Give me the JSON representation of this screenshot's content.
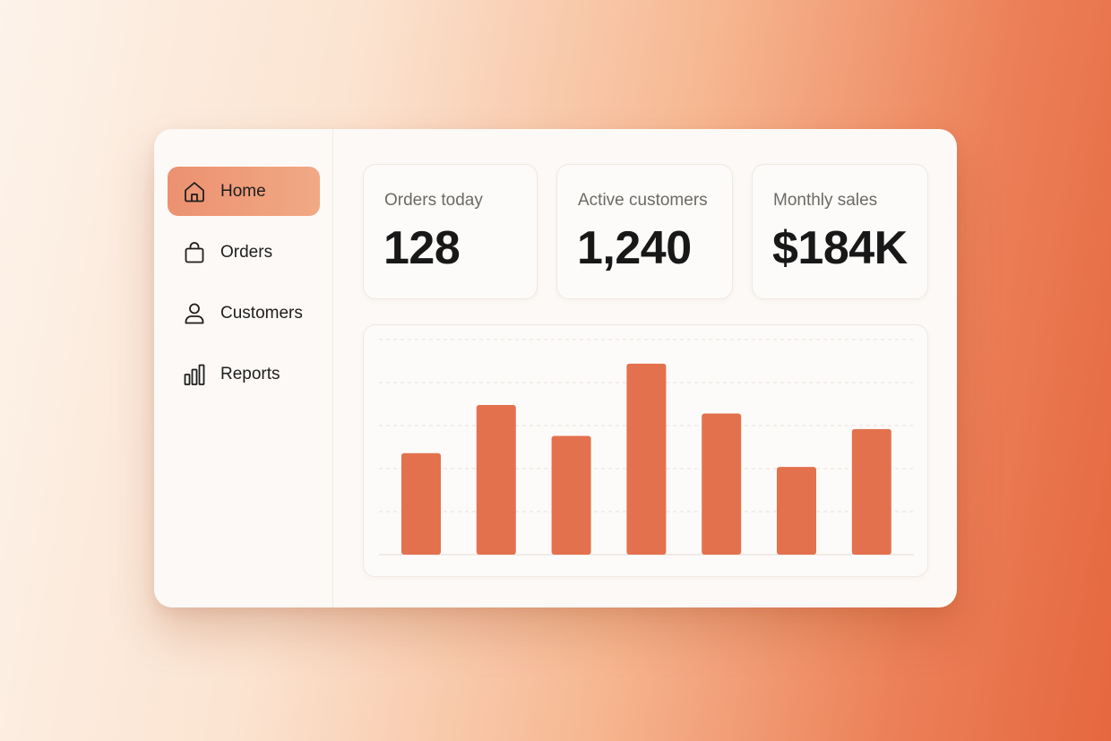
{
  "sidebar": {
    "items": [
      {
        "label": "Home",
        "icon": "home-icon",
        "active": true
      },
      {
        "label": "Orders",
        "icon": "shopping-bag-icon",
        "active": false
      },
      {
        "label": "Customers",
        "icon": "user-icon",
        "active": false
      },
      {
        "label": "Reports",
        "icon": "bar-chart-icon",
        "active": false
      }
    ]
  },
  "stats": [
    {
      "label": "Orders today",
      "value": "128"
    },
    {
      "label": "Active customers",
      "value": "1,240"
    },
    {
      "label": "Monthly sales",
      "value": "$184K"
    }
  ],
  "colors": {
    "accent": "#e4714e",
    "active_nav": "#ee9b78",
    "card_background": "#fdfbf9"
  },
  "chart_data": {
    "type": "bar",
    "values": [
      59,
      87,
      69,
      111,
      82,
      51,
      73
    ],
    "ylim": [
      0,
      125
    ],
    "grid": true
  }
}
